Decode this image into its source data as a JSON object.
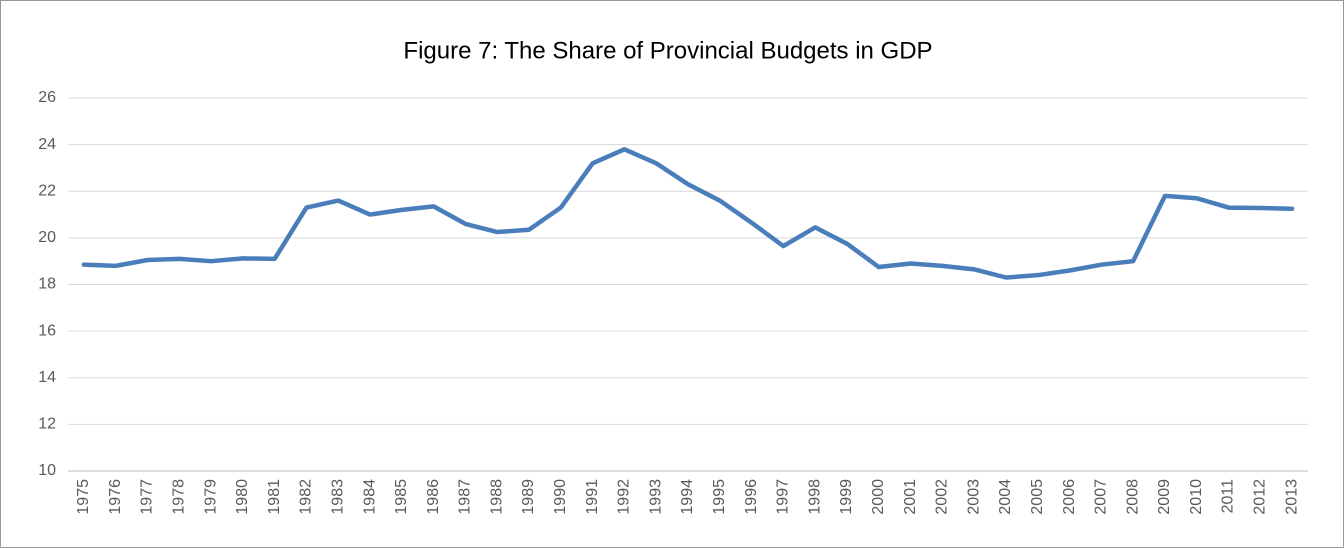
{
  "chart_data": {
    "type": "line",
    "title": "Figure 7: The Share of Provincial Budgets in GDP",
    "categories": [
      "1975",
      "1976",
      "1977",
      "1978",
      "1979",
      "1980",
      "1981",
      "1982",
      "1983",
      "1984",
      "1985",
      "1986",
      "1987",
      "1988",
      "1989",
      "1990",
      "1991",
      "1992",
      "1993",
      "1994",
      "1995",
      "1996",
      "1997",
      "1998",
      "1999",
      "2000",
      "2001",
      "2002",
      "2003",
      "2004",
      "2005",
      "2006",
      "2007",
      "2008",
      "2009",
      "2010",
      "2011",
      "2012",
      "2013"
    ],
    "values": [
      18.85,
      18.8,
      19.05,
      19.1,
      19.0,
      19.12,
      19.1,
      21.3,
      21.6,
      21.0,
      21.2,
      21.35,
      20.6,
      20.25,
      20.35,
      21.3,
      23.2,
      23.8,
      23.2,
      22.3,
      21.6,
      20.65,
      19.65,
      20.45,
      19.75,
      18.75,
      18.9,
      18.8,
      18.65,
      18.3,
      18.4,
      18.6,
      18.85,
      19.0,
      21.8,
      21.7,
      21.3,
      21.28,
      21.25
    ],
    "color": "#4a7ebb",
    "ylim": [
      10,
      26
    ],
    "yticks": [
      10,
      12,
      14,
      16,
      18,
      20,
      22,
      24,
      26
    ],
    "grid": true
  }
}
